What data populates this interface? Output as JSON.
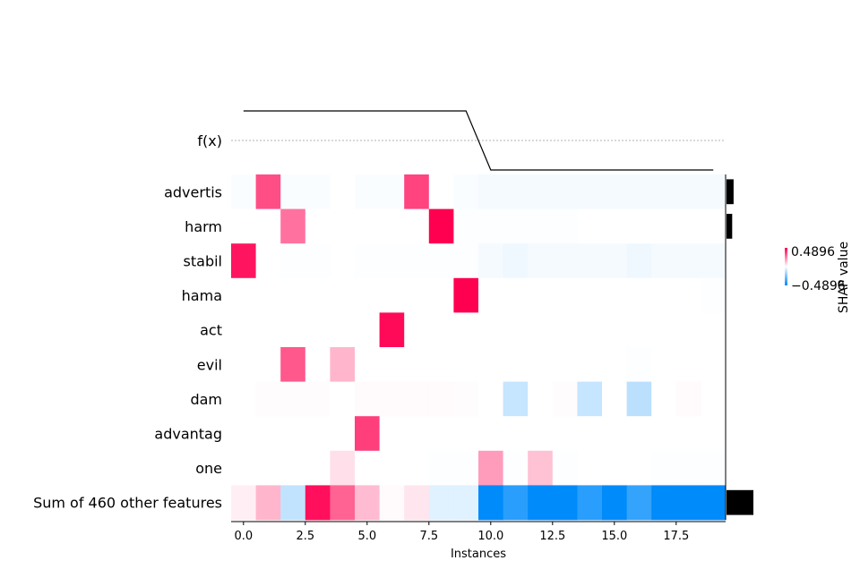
{
  "chart_data": {
    "type": "heatmap",
    "title": "",
    "xlabel": "Instances",
    "ylabel": "",
    "fx_label": "f(x)",
    "x_ticks": [
      "0.0",
      "2.5",
      "5.0",
      "7.5",
      "10.0",
      "12.5",
      "15.0",
      "17.5"
    ],
    "x_tick_values": [
      0,
      2.5,
      5,
      7.5,
      10,
      12.5,
      15,
      17.5
    ],
    "xlim": [
      -0.5,
      19.5
    ],
    "rows": [
      "advertis",
      "harm",
      "stabil",
      "hama",
      "act",
      "evil",
      "dam",
      "advantag",
      "one",
      "Sum of 460 other features"
    ],
    "instances": [
      0,
      1,
      2,
      3,
      4,
      5,
      6,
      7,
      8,
      9,
      10,
      11,
      12,
      13,
      14,
      15,
      16,
      17,
      18,
      19
    ],
    "values": [
      [
        -0.01,
        0.34,
        -0.01,
        -0.01,
        0.0,
        -0.01,
        -0.01,
        0.36,
        0.0,
        -0.01,
        -0.02,
        -0.02,
        -0.02,
        -0.02,
        -0.02,
        -0.02,
        -0.02,
        -0.02,
        -0.02,
        -0.02
      ],
      [
        0.0,
        0.0,
        0.27,
        0.0,
        0.0,
        0.0,
        0.0,
        0.0,
        0.49,
        -0.005,
        -0.005,
        -0.005,
        -0.005,
        -0.005,
        0.0,
        0.0,
        0.0,
        0.0,
        0.0,
        0.0
      ],
      [
        0.45,
        0.0,
        -0.005,
        -0.005,
        0.0,
        -0.005,
        -0.005,
        -0.005,
        -0.005,
        -0.005,
        -0.02,
        -0.03,
        -0.02,
        -0.02,
        -0.02,
        -0.02,
        -0.03,
        -0.02,
        -0.02,
        -0.02
      ],
      [
        0.0,
        0.0,
        0.0,
        0.0,
        0.0,
        0.0,
        0.0,
        0.0,
        0.0,
        0.49,
        0.0,
        0.0,
        0.0,
        0.0,
        0.0,
        0.0,
        0.0,
        0.0,
        0.0,
        -0.003
      ],
      [
        0.0,
        0.0,
        0.0,
        0.0,
        0.0,
        0.0,
        0.47,
        0.0,
        0.0,
        0.0,
        0.0,
        0.0,
        0.0,
        0.0,
        0.0,
        0.0,
        0.0,
        0.0,
        0.0,
        0.0
      ],
      [
        0.0,
        0.0,
        0.32,
        0.0,
        0.14,
        0.0,
        0.0,
        0.0,
        0.0,
        0.0,
        0.0,
        0.0,
        0.0,
        0.0,
        0.0,
        0.0,
        -0.003,
        0.0,
        0.0,
        0.0
      ],
      [
        0.0,
        0.005,
        0.005,
        0.005,
        0.0,
        0.01,
        0.01,
        0.01,
        0.01,
        0.005,
        0.0,
        -0.11,
        0.0,
        0.005,
        -0.11,
        0.0,
        -0.13,
        0.0,
        0.01,
        0.0
      ],
      [
        0.0,
        0.0,
        0.0,
        0.0,
        0.0,
        0.37,
        0.0,
        0.0,
        0.0,
        0.0,
        0.0,
        0.0,
        0.0,
        0.0,
        0.0,
        0.0,
        0.0,
        0.0,
        0.0,
        0.0
      ],
      [
        0.0,
        0.0,
        0.0,
        0.0,
        0.06,
        0.0,
        0.0,
        0.0,
        -0.003,
        -0.003,
        0.19,
        -0.003,
        0.12,
        -0.003,
        0.0,
        0.0,
        0.0,
        -0.003,
        -0.003,
        -0.003
      ],
      [
        0.03,
        0.14,
        -0.12,
        0.46,
        0.3,
        0.13,
        0.01,
        0.05,
        -0.06,
        -0.06,
        -0.49,
        -0.41,
        -0.49,
        -0.49,
        -0.41,
        -0.49,
        -0.39,
        -0.49,
        -0.49,
        -0.49
      ]
    ],
    "fx_values": [
      0.5,
      0.5,
      0.5,
      0.5,
      0.5,
      0.5,
      0.5,
      0.5,
      0.5,
      0.5,
      -0.5,
      -0.5,
      -0.5,
      -0.5,
      -0.5,
      -0.5,
      -0.5,
      -0.5,
      -0.5,
      -0.5
    ],
    "fx_baseline": 0.0,
    "feature_importance": [
      0.1,
      0.08,
      0.0,
      0.0,
      0.0,
      0.0,
      0.0,
      0.0,
      0.0,
      0.38
    ],
    "colorbar": {
      "label": "SHAP value",
      "max_label": "0.4896",
      "min_label": "−0.4896",
      "max": 0.4896,
      "min": -0.4896,
      "positive_color": "#ff0051",
      "negative_color": "#008bfb"
    }
  }
}
